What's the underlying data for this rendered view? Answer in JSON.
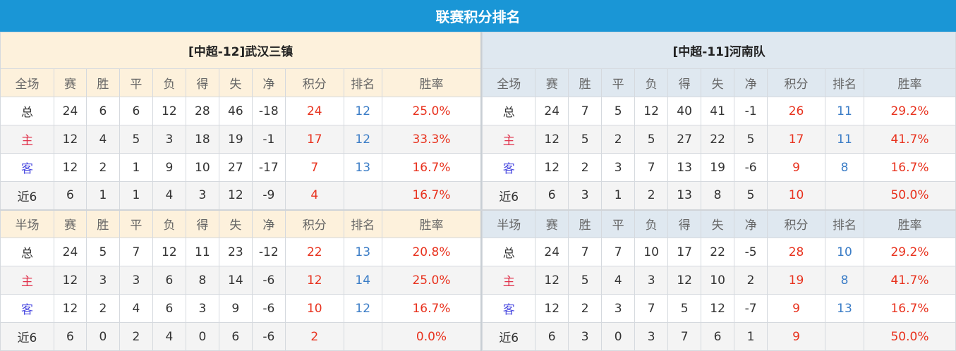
{
  "title": "联赛积分排名",
  "colors": {
    "title_bg": "#1a96d6",
    "points": "#e8321e",
    "rank": "#3a7cc6",
    "home": "#e0304a",
    "away": "#4a4ae0"
  },
  "headers": [
    "赛",
    "胜",
    "平",
    "负",
    "得",
    "失",
    "净",
    "积分",
    "排名",
    "胜率"
  ],
  "teams": [
    {
      "name": "[中超-12]武汉三镇",
      "sections": [
        {
          "label": "全场",
          "rows": [
            [
              "总",
              "24",
              "6",
              "6",
              "12",
              "28",
              "46",
              "-18",
              "24",
              "12",
              "25.0%"
            ],
            [
              "主",
              "12",
              "4",
              "5",
              "3",
              "18",
              "19",
              "-1",
              "17",
              "12",
              "33.3%"
            ],
            [
              "客",
              "12",
              "2",
              "1",
              "9",
              "10",
              "27",
              "-17",
              "7",
              "13",
              "16.7%"
            ],
            [
              "近6",
              "6",
              "1",
              "1",
              "4",
              "3",
              "12",
              "-9",
              "4",
              "",
              "16.7%"
            ]
          ]
        },
        {
          "label": "半场",
          "rows": [
            [
              "总",
              "24",
              "5",
              "7",
              "12",
              "11",
              "23",
              "-12",
              "22",
              "13",
              "20.8%"
            ],
            [
              "主",
              "12",
              "3",
              "3",
              "6",
              "8",
              "14",
              "-6",
              "12",
              "14",
              "25.0%"
            ],
            [
              "客",
              "12",
              "2",
              "4",
              "6",
              "3",
              "9",
              "-6",
              "10",
              "12",
              "16.7%"
            ],
            [
              "近6",
              "6",
              "0",
              "2",
              "4",
              "0",
              "6",
              "-6",
              "2",
              "",
              "0.0%"
            ]
          ]
        }
      ]
    },
    {
      "name": "[中超-11]河南队",
      "sections": [
        {
          "label": "全场",
          "rows": [
            [
              "总",
              "24",
              "7",
              "5",
              "12",
              "40",
              "41",
              "-1",
              "26",
              "11",
              "29.2%"
            ],
            [
              "主",
              "12",
              "5",
              "2",
              "5",
              "27",
              "22",
              "5",
              "17",
              "11",
              "41.7%"
            ],
            [
              "客",
              "12",
              "2",
              "3",
              "7",
              "13",
              "19",
              "-6",
              "9",
              "8",
              "16.7%"
            ],
            [
              "近6",
              "6",
              "3",
              "1",
              "2",
              "13",
              "8",
              "5",
              "10",
              "",
              "50.0%"
            ]
          ]
        },
        {
          "label": "半场",
          "rows": [
            [
              "总",
              "24",
              "7",
              "7",
              "10",
              "17",
              "22",
              "-5",
              "28",
              "10",
              "29.2%"
            ],
            [
              "主",
              "12",
              "5",
              "4",
              "3",
              "12",
              "10",
              "2",
              "19",
              "8",
              "41.7%"
            ],
            [
              "客",
              "12",
              "2",
              "3",
              "7",
              "5",
              "12",
              "-7",
              "9",
              "13",
              "16.7%"
            ],
            [
              "近6",
              "6",
              "3",
              "0",
              "3",
              "7",
              "6",
              "1",
              "9",
              "",
              "50.0%"
            ]
          ]
        }
      ]
    }
  ]
}
